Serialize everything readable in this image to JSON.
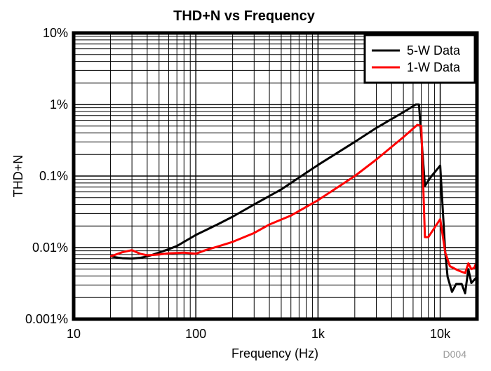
{
  "chart_data": {
    "type": "line",
    "title": "THD+N vs Frequency",
    "xlabel": "Frequency (Hz)",
    "ylabel": "THD+N",
    "xscale": "log",
    "yscale": "log",
    "xlim": [
      10,
      20000
    ],
    "ylim": [
      0.001,
      10
    ],
    "xticks": [
      {
        "v": 10,
        "label": "10"
      },
      {
        "v": 100,
        "label": "100"
      },
      {
        "v": 1000,
        "label": "1k"
      },
      {
        "v": 10000,
        "label": "10k"
      }
    ],
    "yticks": [
      {
        "v": 0.001,
        "label": "0.001%"
      },
      {
        "v": 0.01,
        "label": "0.01%"
      },
      {
        "v": 0.1,
        "label": "0.1%"
      },
      {
        "v": 1,
        "label": "1%"
      },
      {
        "v": 10,
        "label": "10%"
      }
    ],
    "grid": true,
    "legend_position": "top-right",
    "watermark": "D004",
    "series": [
      {
        "name": "5-W Data",
        "color": "#000000",
        "x": [
          20,
          25,
          30,
          35,
          40,
          50,
          60,
          70,
          100,
          150,
          200,
          300,
          500,
          1000,
          2000,
          3000,
          5000,
          6300,
          6700,
          7500,
          8500,
          10000,
          11000,
          11500,
          12500,
          13500,
          15000,
          16000,
          17000,
          18000,
          20000
        ],
        "y": [
          0.0075,
          0.0071,
          0.007,
          0.0072,
          0.0075,
          0.0085,
          0.0095,
          0.0105,
          0.015,
          0.021,
          0.027,
          0.04,
          0.065,
          0.143,
          0.3,
          0.47,
          0.78,
          1.0,
          1.0,
          0.073,
          0.1,
          0.14,
          0.0085,
          0.0039,
          0.0024,
          0.0031,
          0.0031,
          0.0023,
          0.005,
          0.0032,
          0.0039
        ]
      },
      {
        "name": "1-W Data",
        "color": "#ff0000",
        "x": [
          20,
          25,
          30,
          35,
          40,
          50,
          60,
          80,
          100,
          120,
          150,
          200,
          300,
          400,
          600,
          1000,
          2000,
          3000,
          5000,
          6500,
          7000,
          7500,
          8000,
          10000,
          11000,
          12000,
          14000,
          16000,
          17000,
          18000,
          19000,
          20000
        ],
        "y": [
          0.0075,
          0.0086,
          0.0092,
          0.0082,
          0.0078,
          0.008,
          0.0083,
          0.0085,
          0.0082,
          0.0092,
          0.0103,
          0.012,
          0.016,
          0.021,
          0.028,
          0.046,
          0.1,
          0.17,
          0.35,
          0.52,
          0.5,
          0.014,
          0.014,
          0.025,
          0.0085,
          0.0055,
          0.0048,
          0.0044,
          0.006,
          0.005,
          0.0052,
          0.0065
        ]
      }
    ]
  }
}
